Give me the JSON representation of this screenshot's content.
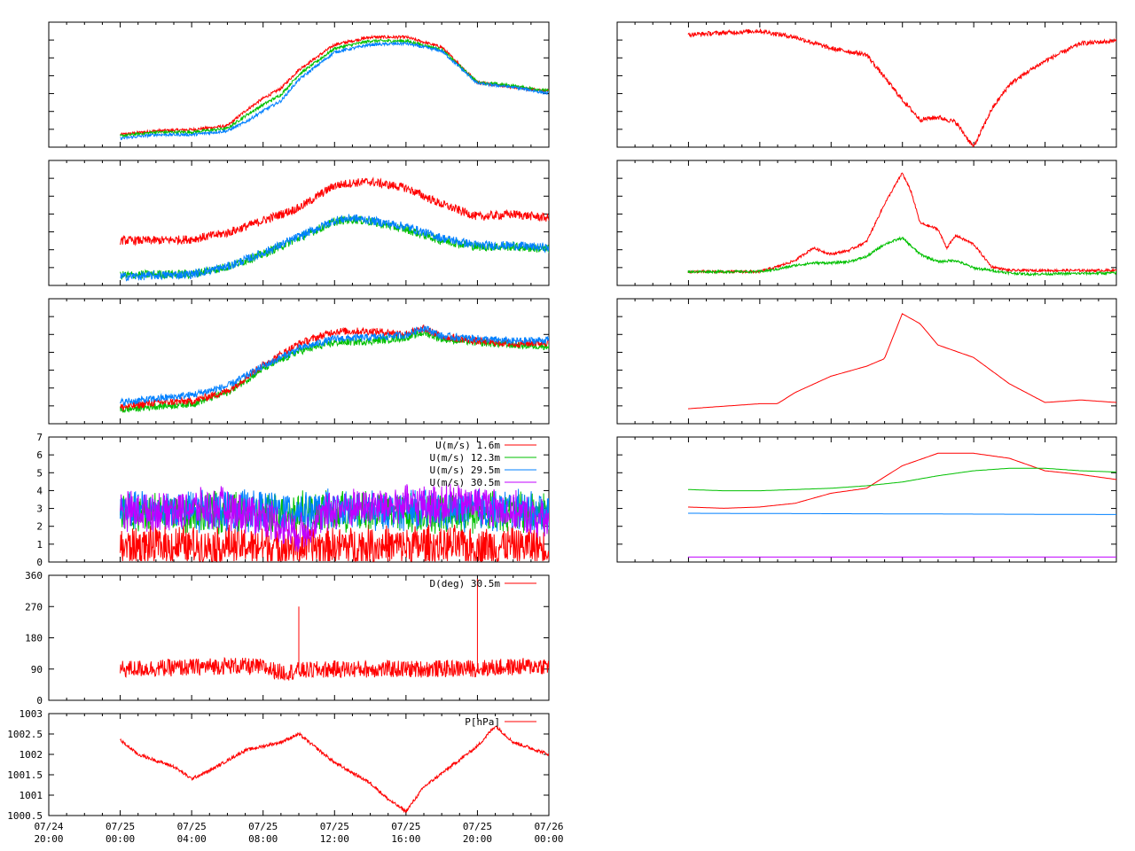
{
  "x_axis": {
    "ticks": [
      {
        "date": "07/24",
        "time": "20:00"
      },
      {
        "date": "07/25",
        "time": "00:00"
      },
      {
        "date": "07/25",
        "time": "04:00"
      },
      {
        "date": "07/25",
        "time": "08:00"
      },
      {
        "date": "07/25",
        "time": "12:00"
      },
      {
        "date": "07/25",
        "time": "16:00"
      },
      {
        "date": "07/25",
        "time": "20:00"
      },
      {
        "date": "07/26",
        "time": "00:00"
      }
    ],
    "range": [
      "07/24 20:00",
      "07/26 00:00"
    ],
    "left_panels_data_start": "07/25 00:00",
    "right_panels_data_start": "07/25 00:00"
  },
  "colors": {
    "red": "#ff0000",
    "green": "#00c000",
    "blue": "#0080ff",
    "purple": "#c000ff",
    "olive": "#808000"
  },
  "chart_data": [
    {
      "id": "L1",
      "type": "line",
      "ylim": [
        0,
        10
      ],
      "grid": false,
      "axis_labels_shown": false,
      "series": [
        {
          "color": "red",
          "x": [
            4,
            6,
            8,
            10,
            11,
            12,
            13,
            14,
            16,
            18,
            20,
            22,
            24,
            26,
            28
          ],
          "values": [
            1.0,
            1.3,
            1.4,
            1.7,
            2.9,
            3.9,
            4.7,
            6.2,
            8.2,
            8.8,
            8.8,
            8.0,
            5.2,
            4.8,
            4.5
          ]
        },
        {
          "color": "green",
          "x": [
            4,
            6,
            8,
            10,
            11,
            12,
            13,
            14,
            16,
            18,
            20,
            22,
            24,
            26,
            28
          ],
          "values": [
            0.9,
            1.2,
            1.2,
            1.5,
            2.5,
            3.4,
            4.2,
            5.8,
            7.9,
            8.5,
            8.5,
            7.8,
            5.2,
            4.9,
            4.5
          ]
        },
        {
          "color": "blue",
          "x": [
            4,
            6,
            8,
            10,
            11,
            12,
            13,
            14,
            16,
            18,
            20,
            22,
            24,
            26,
            28
          ],
          "values": [
            0.7,
            1.0,
            1.0,
            1.3,
            2.0,
            2.9,
            3.7,
            5.4,
            7.6,
            8.2,
            8.3,
            7.7,
            5.1,
            4.8,
            4.3
          ]
        }
      ],
      "noise": 0.12
    },
    {
      "id": "L2",
      "type": "line",
      "ylim": [
        0,
        10
      ],
      "grid": false,
      "axis_labels_shown": false,
      "series": [
        {
          "color": "red",
          "x": [
            4,
            6,
            8,
            10,
            12,
            14,
            16,
            17,
            18,
            20,
            22,
            24,
            26,
            28
          ],
          "values": [
            3.6,
            3.6,
            3.7,
            4.2,
            5.2,
            6.2,
            8.0,
            8.2,
            8.3,
            7.8,
            6.5,
            5.5,
            5.7,
            5.4
          ]
        },
        {
          "color": "green",
          "x": [
            4,
            6,
            8,
            10,
            12,
            14,
            16,
            17,
            18,
            20,
            22,
            24,
            26,
            28
          ],
          "values": [
            0.8,
            0.9,
            0.9,
            1.5,
            2.5,
            3.8,
            5.1,
            5.3,
            5.1,
            4.5,
            3.6,
            3.1,
            3.1,
            2.9
          ]
        },
        {
          "color": "blue",
          "x": [
            4,
            6,
            8,
            10,
            12,
            14,
            16,
            17,
            18,
            20,
            22,
            24,
            26,
            28
          ],
          "values": [
            0.7,
            0.8,
            0.9,
            1.5,
            2.6,
            3.9,
            5.2,
            5.4,
            5.2,
            4.7,
            3.8,
            3.2,
            3.2,
            3.0
          ]
        }
      ],
      "noise": 0.35
    },
    {
      "id": "L3",
      "type": "line",
      "ylim": [
        0,
        10
      ],
      "grid": false,
      "axis_labels_shown": false,
      "series": [
        {
          "color": "green",
          "x": [
            4,
            6,
            8,
            10,
            12,
            14,
            16,
            18,
            20,
            21,
            22,
            24,
            26,
            28
          ],
          "values": [
            1.1,
            1.4,
            1.6,
            2.5,
            4.4,
            5.8,
            6.5,
            6.6,
            6.9,
            7.3,
            6.8,
            6.5,
            6.3,
            6.2
          ]
        },
        {
          "color": "red",
          "x": [
            4,
            6,
            8,
            10,
            12,
            14,
            16,
            18,
            20,
            21,
            22,
            24,
            26,
            28
          ],
          "values": [
            1.3,
            1.7,
            1.8,
            2.6,
            4.7,
            6.4,
            7.4,
            7.4,
            7.2,
            7.6,
            7.0,
            6.6,
            6.4,
            6.5
          ]
        },
        {
          "color": "blue",
          "x": [
            4,
            6,
            8,
            10,
            12,
            14,
            16,
            18,
            20,
            21,
            22,
            24,
            26,
            28
          ],
          "values": [
            1.7,
            2.0,
            2.3,
            3.0,
            4.6,
            6.0,
            6.8,
            6.9,
            7.1,
            7.7,
            7.0,
            6.8,
            6.6,
            6.7
          ]
        }
      ],
      "noise": 0.3
    },
    {
      "id": "L4",
      "type": "line",
      "ylim": [
        0,
        7
      ],
      "yticks": [
        "0",
        "1",
        "2",
        "3",
        "4",
        "5",
        "6",
        "7"
      ],
      "grid": false,
      "legend_position": "top-right",
      "series": [
        {
          "name": "U(m/s)  1.6m",
          "color": "red",
          "x": [
            4,
            28
          ],
          "values": [
            0.9,
            0.9
          ]
        },
        {
          "name": "U(m/s) 12.3m",
          "color": "green",
          "x": [
            4,
            28
          ],
          "values": [
            2.8,
            2.8
          ]
        },
        {
          "name": "U(m/s) 29.5m",
          "color": "blue",
          "x": [
            4,
            28
          ],
          "values": [
            2.9,
            2.9
          ]
        },
        {
          "name": "U(m/s) 30.5m",
          "color": "purple",
          "x": [
            4,
            8,
            10,
            12,
            14,
            16,
            20,
            24,
            28
          ],
          "values": [
            2.8,
            3.0,
            3.0,
            2.6,
            1.6,
            3.0,
            3.2,
            3.3,
            2.3
          ]
        }
      ],
      "noise": 1.3
    },
    {
      "id": "L5",
      "type": "line",
      "ylim": [
        0,
        360
      ],
      "yticks": [
        "0",
        "90",
        "180",
        "270",
        "360"
      ],
      "grid": false,
      "legend_position": "top-right",
      "series": [
        {
          "name": "D(deg)  30.5m",
          "color": "red",
          "x": [
            4,
            8,
            10,
            12,
            13,
            14,
            16,
            20,
            24,
            28
          ],
          "values": [
            90,
            95,
            100,
            95,
            80,
            85,
            90,
            90,
            92,
            100
          ]
        }
      ],
      "spikes": [
        {
          "x": 14.0,
          "value": 270
        },
        {
          "x": 24.0,
          "value": 350
        }
      ],
      "noise": 25
    },
    {
      "id": "L6",
      "type": "line",
      "ylim": [
        1000.5,
        1003
      ],
      "yticks": [
        "1000.5",
        "1001",
        "1001.5",
        "1002",
        "1002.5",
        "1003"
      ],
      "grid": false,
      "legend_position": "top-right",
      "series": [
        {
          "name": "P[hPa]",
          "color": "red",
          "x": [
            4,
            5,
            7,
            8,
            9,
            11,
            13,
            14,
            16,
            18,
            19,
            20,
            21,
            24,
            25,
            26,
            28
          ],
          "values": [
            1002.35,
            1002.0,
            1001.7,
            1001.4,
            1001.6,
            1002.1,
            1002.3,
            1002.5,
            1001.8,
            1001.3,
            1000.9,
            1000.6,
            1001.2,
            1002.2,
            1002.7,
            1002.3,
            1002.0
          ]
        }
      ],
      "noise": 0.04
    },
    {
      "id": "R1",
      "type": "line",
      "ylim": [
        0,
        10
      ],
      "grid": false,
      "axis_labels_shown": false,
      "series": [
        {
          "color": "red",
          "x": [
            4,
            8,
            10,
            12,
            14,
            16,
            17,
            18,
            19,
            20,
            21,
            22,
            23,
            24,
            26,
            28
          ],
          "values": [
            9.0,
            9.3,
            8.8,
            7.9,
            7.4,
            3.8,
            2.2,
            2.4,
            2.0,
            0.0,
            3.0,
            5.0,
            6.0,
            6.9,
            8.3,
            8.5
          ]
        }
      ],
      "noise": 0.18
    },
    {
      "id": "R2",
      "type": "line",
      "ylim": [
        0,
        10
      ],
      "grid": false,
      "axis_labels_shown": false,
      "series": [
        {
          "color": "red",
          "x": [
            4,
            8,
            9,
            10,
            11,
            12,
            13,
            14,
            15,
            16,
            16.5,
            17,
            18,
            18.5,
            19,
            20,
            21,
            22,
            23,
            28
          ],
          "values": [
            1.1,
            1.1,
            1.5,
            2.0,
            3.0,
            2.5,
            2.8,
            3.5,
            6.5,
            9.0,
            7.5,
            5.0,
            4.5,
            3.0,
            4.0,
            3.3,
            1.5,
            1.2,
            1.2,
            1.2
          ]
        },
        {
          "color": "green",
          "x": [
            4,
            8,
            9,
            10,
            11,
            12,
            13,
            14,
            15,
            16,
            17,
            18,
            19,
            20,
            22,
            23,
            28
          ],
          "values": [
            1.1,
            1.1,
            1.3,
            1.6,
            1.8,
            1.8,
            1.9,
            2.3,
            3.3,
            3.8,
            2.5,
            1.9,
            2.0,
            1.4,
            1.0,
            0.9,
            1.0
          ]
        }
      ],
      "noise": 0.1
    },
    {
      "id": "R3",
      "type": "line",
      "ylim": [
        0,
        10
      ],
      "grid": false,
      "axis_labels_shown": false,
      "series": [
        {
          "color": "red",
          "x": [
            4,
            6,
            8,
            9,
            10,
            12,
            14,
            15,
            16,
            17,
            18,
            20,
            22,
            24,
            26,
            28
          ],
          "values": [
            1.2,
            1.4,
            1.6,
            1.6,
            2.5,
            3.8,
            4.6,
            5.2,
            8.8,
            8.0,
            6.3,
            5.3,
            3.2,
            1.7,
            1.9,
            1.7
          ]
        }
      ],
      "noise": 0.0
    },
    {
      "id": "R4",
      "type": "line",
      "ylim": [
        0,
        10
      ],
      "grid": false,
      "axis_labels_shown": false,
      "series": [
        {
          "color": "red",
          "x": [
            4,
            6,
            8,
            10,
            12,
            14,
            15,
            16,
            18,
            20,
            22,
            24,
            26,
            28
          ],
          "values": [
            4.4,
            4.3,
            4.4,
            4.7,
            5.5,
            5.9,
            6.8,
            7.7,
            8.7,
            8.7,
            8.3,
            7.3,
            7.0,
            6.6
          ]
        },
        {
          "color": "green",
          "x": [
            4,
            6,
            8,
            10,
            12,
            14,
            16,
            18,
            20,
            22,
            24,
            26,
            28
          ],
          "values": [
            5.8,
            5.7,
            5.7,
            5.8,
            5.9,
            6.1,
            6.4,
            6.9,
            7.3,
            7.5,
            7.5,
            7.3,
            7.2
          ]
        },
        {
          "color": "blue",
          "x": [
            4,
            28
          ],
          "values": [
            3.9,
            3.8
          ]
        },
        {
          "color": "purple",
          "x": [
            4,
            28
          ],
          "values": [
            0.4,
            0.4
          ]
        }
      ],
      "noise": 0.0
    }
  ]
}
